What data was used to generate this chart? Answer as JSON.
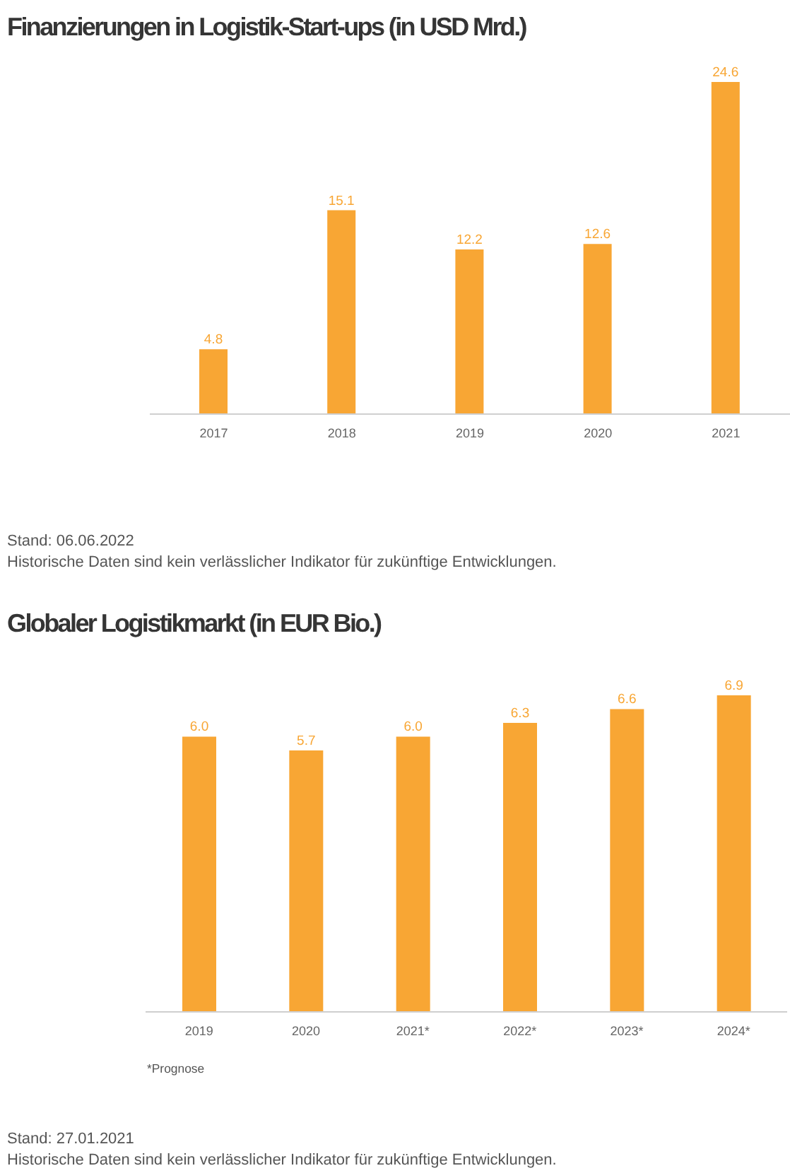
{
  "chart_data": [
    {
      "type": "bar",
      "title": "Finanzierungen in Logistik-Start-ups (in USD Mrd.)",
      "categories": [
        "2017",
        "2018",
        "2019",
        "2020",
        "2021"
      ],
      "values": [
        4.8,
        15.1,
        12.2,
        12.6,
        24.6
      ],
      "color": "#f8a634",
      "data_labels": true,
      "tick_labels": "x",
      "annotations": [
        "Stand: 06.06.2022",
        "Historische Daten sind kein verlässlicher Indikator für zukünftige Entwicklungen."
      ]
    },
    {
      "type": "bar",
      "title": "Globaler Logistikmarkt (in EUR Bio.)",
      "categories": [
        "2019",
        "2020",
        "2021*",
        "2022*",
        "2023*",
        "2024*"
      ],
      "values": [
        6.0,
        5.7,
        6.0,
        6.3,
        6.6,
        6.9
      ],
      "value_labels": [
        "6.0",
        "5.7",
        "6.0",
        "6.3",
        "6.6",
        "6.9"
      ],
      "color": "#f8a634",
      "tick_labels": "x",
      "annotations": [
        "*Prognose",
        "Stand: 27.01.2021",
        "Historische Daten sind kein verlässlicher Indikator für zukünftige Entwicklungen."
      ]
    }
  ]
}
